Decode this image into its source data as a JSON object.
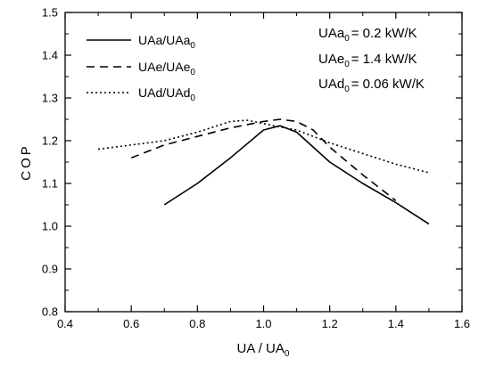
{
  "chart_data": {
    "type": "line",
    "xlabel": "UA / UA",
    "xlabel_sub": "0",
    "ylabel": "COP",
    "xlim": [
      0.4,
      1.6
    ],
    "ylim": [
      0.8,
      1.5
    ],
    "x_ticks": [
      "0.4",
      "0.6",
      "0.8",
      "1.0",
      "1.2",
      "1.4",
      "1.6"
    ],
    "y_ticks": [
      "0.8",
      "0.9",
      "1.0",
      "1.1",
      "1.2",
      "1.3",
      "1.4",
      "1.5"
    ],
    "grid": false,
    "legend_position": "top-left",
    "series": [
      {
        "name": "UAa/UAa",
        "name_sub": "0",
        "style": "solid",
        "color": "#000000",
        "x": [
          0.7,
          0.8,
          0.9,
          1.0,
          1.05,
          1.1,
          1.2,
          1.3,
          1.4,
          1.5
        ],
        "y": [
          1.05,
          1.1,
          1.16,
          1.225,
          1.235,
          1.22,
          1.15,
          1.1,
          1.055,
          1.005
        ]
      },
      {
        "name": "UAe/UAe",
        "name_sub": "0",
        "style": "dashed",
        "color": "#000000",
        "x": [
          0.6,
          0.7,
          0.8,
          0.9,
          1.0,
          1.05,
          1.1,
          1.15,
          1.2,
          1.3,
          1.4
        ],
        "y": [
          1.16,
          1.19,
          1.21,
          1.23,
          1.245,
          1.25,
          1.245,
          1.225,
          1.185,
          1.12,
          1.06
        ]
      },
      {
        "name": "UAd/UAd",
        "name_sub": "0",
        "style": "dotted",
        "color": "#000000",
        "x": [
          0.5,
          0.6,
          0.7,
          0.8,
          0.9,
          0.95,
          1.0,
          1.05,
          1.1,
          1.2,
          1.3,
          1.4,
          1.5
        ],
        "y": [
          1.18,
          1.19,
          1.2,
          1.22,
          1.245,
          1.248,
          1.24,
          1.232,
          1.225,
          1.195,
          1.17,
          1.145,
          1.125
        ]
      }
    ],
    "annotations": [
      {
        "label": "UAa",
        "sub": "0",
        "value": "=  0.2 kW/K"
      },
      {
        "label": "UAe",
        "sub": "0",
        "value": "=  1.4 kW/K"
      },
      {
        "label": "UAd",
        "sub": "0",
        "value": "= 0.06 kW/K"
      }
    ]
  }
}
